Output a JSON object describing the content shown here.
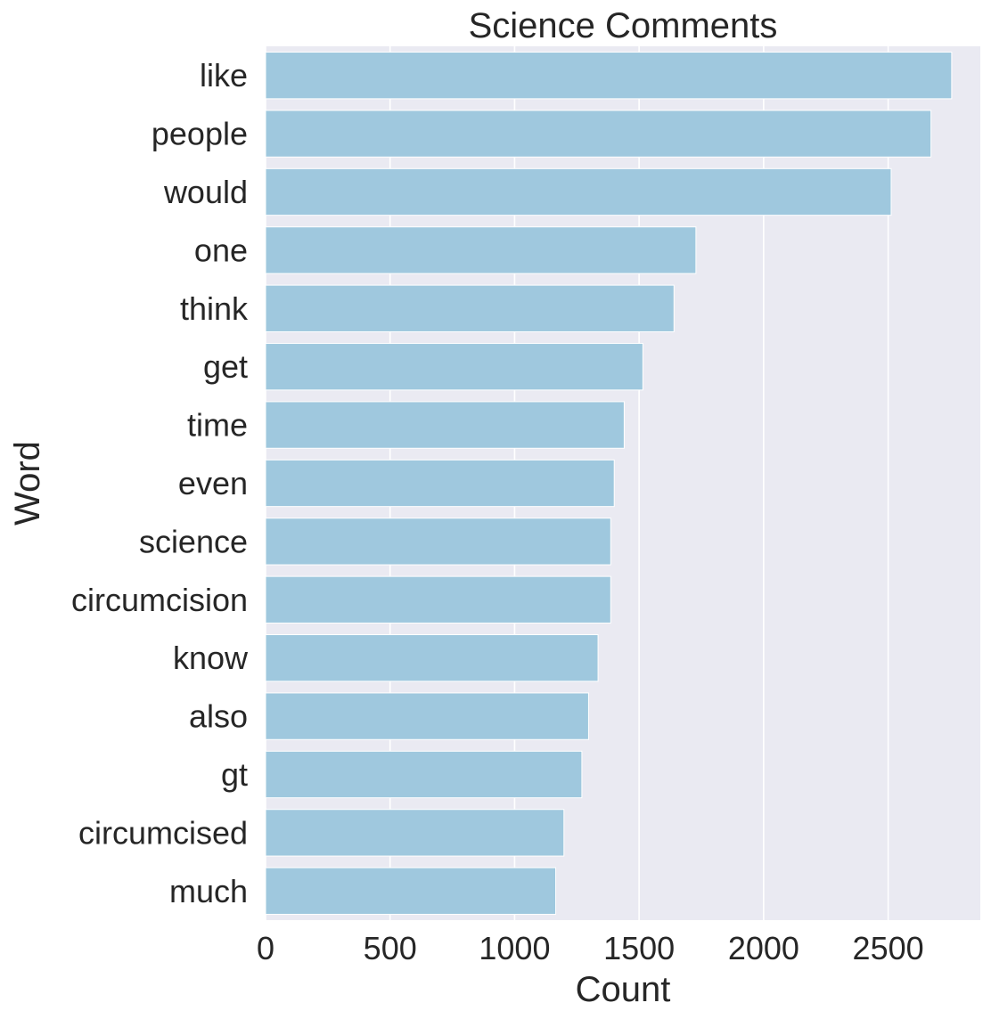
{
  "chart_data": {
    "type": "bar",
    "orientation": "horizontal",
    "title": "Science Comments",
    "xlabel": "Count",
    "ylabel": "Word",
    "categories": [
      "like",
      "people",
      "would",
      "one",
      "think",
      "get",
      "time",
      "even",
      "science",
      "circumcision",
      "know",
      "also",
      "gt",
      "circumcised",
      "much"
    ],
    "values": [
      2755,
      2672,
      2512,
      1728,
      1640,
      1515,
      1440,
      1400,
      1386,
      1386,
      1335,
      1297,
      1270,
      1198,
      1165
    ],
    "xlim": [
      0,
      2870
    ],
    "xticks": [
      0,
      500,
      1000,
      1500,
      2000,
      2500
    ],
    "grid": true,
    "legend": "none",
    "colors": {
      "bar": "#9fc8de",
      "background": "#eaeaf2",
      "grid": "#ffffff",
      "text": "#262626"
    }
  }
}
